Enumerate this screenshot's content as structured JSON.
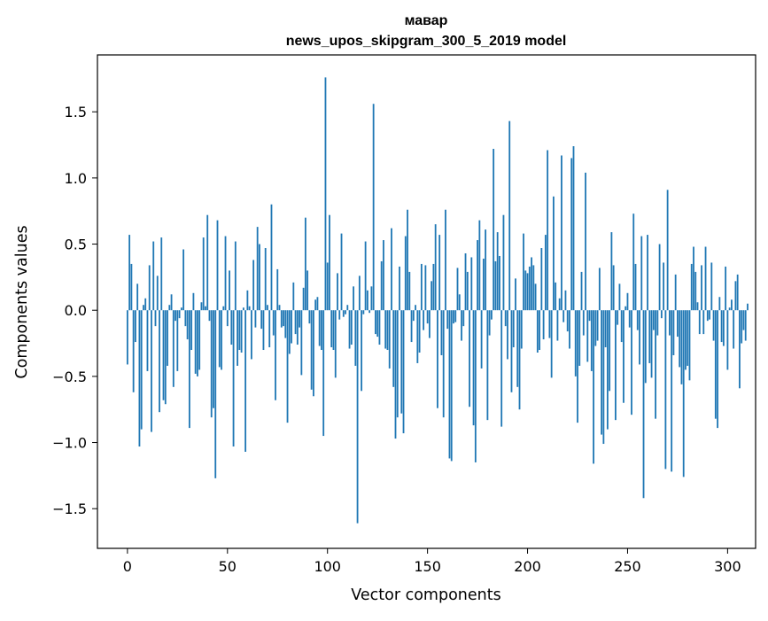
{
  "chart_data": {
    "type": "bar",
    "title": "мавар",
    "subtitle": "news_upos_skipgram_300_5_2019 model",
    "xlabel": "Vector components",
    "ylabel": "Components values",
    "xlim": [
      -15,
      314
    ],
    "ylim": [
      -1.8,
      1.93
    ],
    "xticks": [
      0,
      50,
      100,
      150,
      200,
      250,
      300
    ],
    "yticks": [
      -1.5,
      -1.0,
      -0.5,
      0.0,
      0.5,
      1.0,
      1.5
    ],
    "xtick_labels": [
      "0",
      "50",
      "100",
      "150",
      "200",
      "250",
      "300"
    ],
    "ytick_labels": [
      "−1.5",
      "−1.0",
      "−0.5",
      "0.0",
      "0.5",
      "1.0",
      "1.5"
    ],
    "bar_color": "#1f77b4",
    "values": [
      -0.41,
      0.57,
      0.35,
      -0.62,
      -0.24,
      0.2,
      -1.03,
      -0.9,
      0.04,
      0.09,
      -0.46,
      0.34,
      -0.92,
      0.52,
      -0.12,
      0.26,
      -0.77,
      0.55,
      -0.68,
      -0.71,
      -0.42,
      0.04,
      0.12,
      -0.58,
      -0.08,
      -0.46,
      -0.06,
      0.02,
      0.46,
      -0.12,
      -0.22,
      -0.89,
      -0.3,
      0.13,
      -0.48,
      -0.5,
      -0.45,
      0.06,
      0.55,
      0.03,
      0.72,
      -0.08,
      -0.81,
      -0.74,
      -1.27,
      0.68,
      -0.43,
      -0.45,
      0.03,
      0.56,
      -0.12,
      0.3,
      -0.26,
      -1.03,
      0.52,
      -0.42,
      -0.3,
      -0.32,
      0.02,
      -1.07,
      0.15,
      0.03,
      -0.37,
      0.38,
      -0.13,
      0.63,
      0.5,
      -0.14,
      -0.3,
      0.47,
      0.04,
      -0.28,
      0.8,
      -0.19,
      -0.68,
      0.31,
      0.04,
      -0.13,
      -0.12,
      -0.21,
      -0.85,
      -0.33,
      -0.25,
      0.21,
      -0.18,
      -0.26,
      -0.13,
      -0.49,
      0.17,
      0.7,
      0.3,
      -0.1,
      -0.6,
      -0.65,
      0.08,
      0.1,
      -0.27,
      -0.3,
      -0.95,
      1.76,
      0.36,
      0.72,
      -0.28,
      -0.3,
      -0.51,
      0.28,
      -0.07,
      0.58,
      -0.05,
      -0.03,
      0.04,
      -0.29,
      -0.26,
      0.18,
      -0.42,
      -1.61,
      0.26,
      -0.61,
      -0.03,
      0.52,
      0.15,
      -0.02,
      0.18,
      1.56,
      -0.18,
      -0.2,
      -0.26,
      0.37,
      0.53,
      -0.29,
      -0.3,
      -0.44,
      0.62,
      -0.58,
      -0.97,
      -0.81,
      0.33,
      -0.78,
      -0.93,
      0.56,
      0.76,
      0.29,
      -0.24,
      -0.08,
      0.04,
      -0.4,
      -0.32,
      0.35,
      -0.15,
      0.34,
      -0.1,
      -0.21,
      0.22,
      0.35,
      0.65,
      -0.74,
      0.57,
      -0.34,
      -0.81,
      0.76,
      -0.14,
      -1.12,
      -1.14,
      -0.1,
      -0.09,
      0.32,
      0.12,
      -0.23,
      -0.12,
      0.43,
      0.29,
      -0.73,
      0.4,
      -0.87,
      -1.15,
      0.53,
      0.68,
      -0.44,
      0.39,
      0.61,
      -0.83,
      -0.19,
      -0.07,
      1.22,
      0.37,
      0.59,
      0.41,
      -0.88,
      0.72,
      -0.12,
      -0.37,
      1.43,
      -0.62,
      -0.28,
      0.24,
      -0.58,
      -0.75,
      -0.29,
      0.58,
      0.3,
      0.28,
      0.33,
      0.4,
      0.34,
      0.2,
      -0.32,
      -0.3,
      0.47,
      -0.22,
      0.57,
      1.21,
      -0.21,
      -0.51,
      0.86,
      0.21,
      -0.23,
      0.09,
      1.17,
      -0.09,
      0.15,
      -0.16,
      -0.29,
      1.15,
      1.24,
      -0.5,
      -0.85,
      -0.42,
      0.29,
      -0.19,
      1.04,
      -0.39,
      -0.08,
      -0.46,
      -1.16,
      -0.27,
      -0.23,
      0.32,
      -0.94,
      -1.01,
      -0.28,
      -0.9,
      -0.61,
      0.59,
      0.34,
      -0.83,
      -0.11,
      0.2,
      -0.24,
      -0.7,
      0.03,
      0.13,
      -0.13,
      -0.79,
      0.73,
      0.35,
      -0.15,
      -0.41,
      0.56,
      -1.42,
      -0.55,
      0.57,
      -0.4,
      -0.51,
      -0.15,
      -0.82,
      -0.19,
      0.5,
      -0.06,
      0.36,
      -1.2,
      0.91,
      -0.19,
      -1.22,
      -0.34,
      0.27,
      -0.2,
      -0.43,
      -0.56,
      -1.26,
      -0.45,
      -0.42,
      -0.53,
      0.35,
      0.48,
      0.29,
      0.06,
      -0.18,
      0.34,
      -0.18,
      0.48,
      -0.08,
      -0.07,
      0.36,
      -0.23,
      -0.82,
      -0.89,
      0.1,
      -0.24,
      -0.27,
      0.33,
      -0.45,
      0.02,
      0.08,
      -0.29,
      0.22,
      0.27,
      -0.59,
      -0.25,
      -0.15,
      -0.23,
      0.05,
      0.0,
      0.0,
      0.0,
      0.0,
      0.0,
      0.0
    ]
  }
}
